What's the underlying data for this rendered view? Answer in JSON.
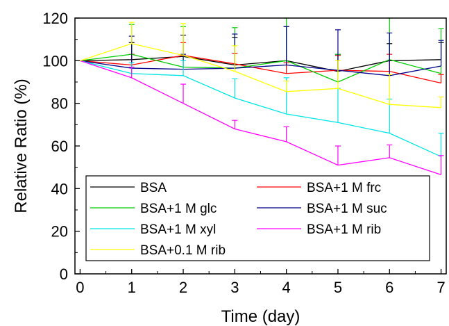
{
  "chart_data": {
    "type": "line",
    "xlabel": "Time (day)",
    "ylabel": "Relative Ratio (%)",
    "xlim": [
      -0.1,
      7.1
    ],
    "ylim": [
      0,
      120
    ],
    "x_ticks": [
      0,
      1,
      2,
      3,
      4,
      5,
      6,
      7
    ],
    "y_ticks": [
      0,
      20,
      40,
      60,
      80,
      100,
      120
    ],
    "x_tick_labels": [
      "0",
      "1",
      "2",
      "3",
      "4",
      "5",
      "6",
      "7"
    ],
    "y_tick_labels": [
      "0",
      "20",
      "40",
      "60",
      "80",
      "100",
      "120"
    ],
    "x": [
      0,
      1,
      2,
      3,
      4,
      5,
      6,
      7
    ],
    "legend_placement": "lower-left",
    "grid": false,
    "series": [
      {
        "name": "BSA",
        "color": "#000000",
        "values": [
          100,
          100.5,
          102,
          98,
          100,
          95,
          100,
          100.5
        ],
        "errors": [
          6,
          8,
          10,
          13,
          16,
          8,
          8,
          8
        ]
      },
      {
        "name": "BSA+1 M frc",
        "color": "#ff0000",
        "values": [
          100,
          98,
          102.5,
          98.5,
          94,
          95.5,
          95,
          89.5
        ],
        "errors": [
          6,
          5,
          6,
          5,
          5,
          7,
          8,
          4
        ]
      },
      {
        "name": "BSA+1 M glc",
        "color": "#00cc00",
        "values": [
          100,
          103,
          97,
          96.5,
          100,
          90,
          100.5,
          94
        ],
        "errors": [
          20,
          14,
          19,
          19,
          20,
          13,
          20,
          21
        ]
      },
      {
        "name": "BSA+1 M suc",
        "color": "#00008b",
        "values": [
          100,
          96.5,
          96,
          96.5,
          98,
          95.5,
          93,
          97.5
        ],
        "errors": [
          6,
          15,
          7,
          16,
          18,
          19,
          20,
          12
        ]
      },
      {
        "name": "BSA+1 M xyl",
        "color": "#00e5e5",
        "values": [
          100,
          94,
          93,
          82.5,
          75,
          71,
          66,
          55
        ],
        "errors": [
          5,
          5,
          7,
          9,
          17,
          16,
          16,
          11
        ]
      },
      {
        "name": "BSA+1 M rib",
        "color": "#ff00ff",
        "values": [
          100,
          92,
          80,
          68,
          62,
          51,
          54.5,
          46.5
        ],
        "errors": [
          5,
          5,
          9,
          4,
          7,
          9,
          6,
          9
        ]
      },
      {
        "name": "BSA+0.1 M rib",
        "color": "#ffff00",
        "values": [
          100,
          108,
          102.5,
          95,
          85.5,
          87,
          79.5,
          78
        ],
        "errors": [
          6,
          10,
          15,
          12,
          5,
          13,
          14,
          5
        ]
      }
    ]
  }
}
